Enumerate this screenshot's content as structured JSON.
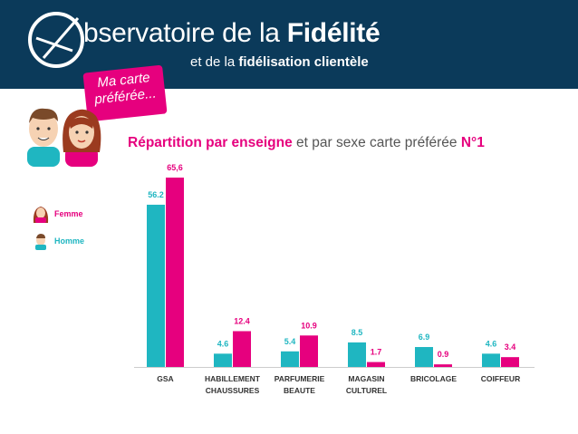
{
  "header": {
    "brand_title_regular": "bservatoire de la ",
    "brand_title_bold": "Fidélité",
    "brand_subtitle_regular": "et de la ",
    "brand_subtitle_bold": "fidélisation clientèle",
    "sticker_line1": "Ma carte",
    "sticker_line2": "préférée..."
  },
  "chart_title": {
    "part1": "Répartition par enseigne",
    "part2": " et par sexe carte préférée ",
    "part3": "N°1"
  },
  "legend": [
    {
      "label": "Femme",
      "color": "#e6007e"
    },
    {
      "label": "Homme",
      "color": "#1fb6c1"
    }
  ],
  "colors": {
    "banner": "#0b3a5a",
    "femme": "#e6007e",
    "homme": "#1fb6c1"
  },
  "chart_data": {
    "type": "bar",
    "categories": [
      [
        "GSA"
      ],
      [
        "HABILLEMENT",
        "CHAUSSURES"
      ],
      [
        "PARFUMERIE",
        "BEAUTE"
      ],
      [
        "MAGASIN",
        "CULTUREL"
      ],
      [
        "BRICOLAGE"
      ],
      [
        "COIFFEUR"
      ]
    ],
    "series": [
      {
        "name": "Homme",
        "values": [
          56.2,
          4.6,
          5.4,
          8.5,
          6.9,
          4.6
        ],
        "labels": [
          "56.2",
          "4.6",
          "5.4",
          "8.5",
          "6.9",
          "4.6"
        ]
      },
      {
        "name": "Femme",
        "values": [
          65.6,
          12.4,
          10.9,
          1.7,
          0.9,
          3.4
        ],
        "labels": [
          "65,6",
          "12.4",
          "10.9",
          "1.7",
          "0.9",
          "3.4"
        ]
      }
    ],
    "ylim": [
      0,
      65.6
    ],
    "grid": false,
    "legend_position": "left"
  }
}
